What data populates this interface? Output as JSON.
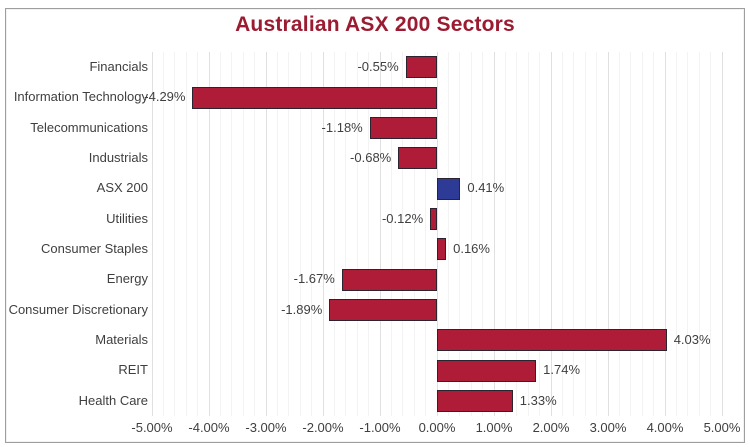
{
  "title": "Australian ASX 200 Sectors",
  "colors": {
    "title": "#9b1b31",
    "bar_fill": "#ae1c38",
    "bar_highlight_fill": "#2d3b96",
    "bar_border": "#2b2430",
    "axis_text": "#3f3f3f",
    "grid_major": "#e0e0e0",
    "grid_minor": "#f3f3f3",
    "frame_border": "#9e9e9e"
  },
  "chart_data": {
    "type": "bar",
    "orientation": "horizontal",
    "title": "Australian ASX 200 Sectors",
    "categories": [
      "Financials",
      "Information Technology",
      "Telecommunications",
      "Industrials",
      "ASX 200",
      "Utilities",
      "Consumer Staples",
      "Energy",
      "Consumer Discretionary",
      "Materials",
      "REIT",
      "Health Care"
    ],
    "values": [
      -0.55,
      -4.29,
      -1.18,
      -0.68,
      0.41,
      -0.12,
      0.16,
      -1.67,
      -1.89,
      4.03,
      1.74,
      1.33
    ],
    "value_labels": [
      "-0.55%",
      "-4.29%",
      "-1.18%",
      "-0.68%",
      "0.41%",
      "-0.12%",
      "0.16%",
      "-1.67%",
      "-1.89%",
      "4.03%",
      "1.74%",
      "1.33%"
    ],
    "highlight_category": "ASX 200",
    "xlim": [
      -5,
      5
    ],
    "x_tick_labels": [
      "-5.00%",
      "-4.00%",
      "-3.00%",
      "-2.00%",
      "-1.00%",
      "0.00%",
      "1.00%",
      "2.00%",
      "3.00%",
      "4.00%",
      "5.00%"
    ],
    "x_tick_step_pct": 1.0,
    "minor_grid_step_pct": 0.2,
    "grid": true,
    "legend": false,
    "xlabel": "",
    "ylabel": ""
  }
}
